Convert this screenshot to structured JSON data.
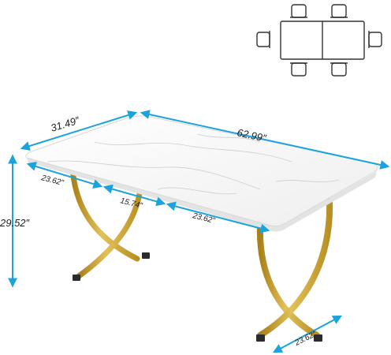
{
  "colors": {
    "dimension_line": "#1aa3dc",
    "gold_leg": "#c9a02b",
    "gold_leg_dark": "#a07a14",
    "tabletop": "#f7f7f7",
    "icon_stroke": "#333333"
  },
  "dimensions": {
    "depth": "31.49″",
    "length": "62.99″",
    "height": "29.52″",
    "edge_to_leg": "23.62″",
    "leg_gap": "15.74″",
    "leg_to_edge": "23.62″",
    "leg_base": "23.62″"
  },
  "seating_icon": {
    "icon": "table-seating-six-chairs-icon",
    "chairs": 6
  }
}
